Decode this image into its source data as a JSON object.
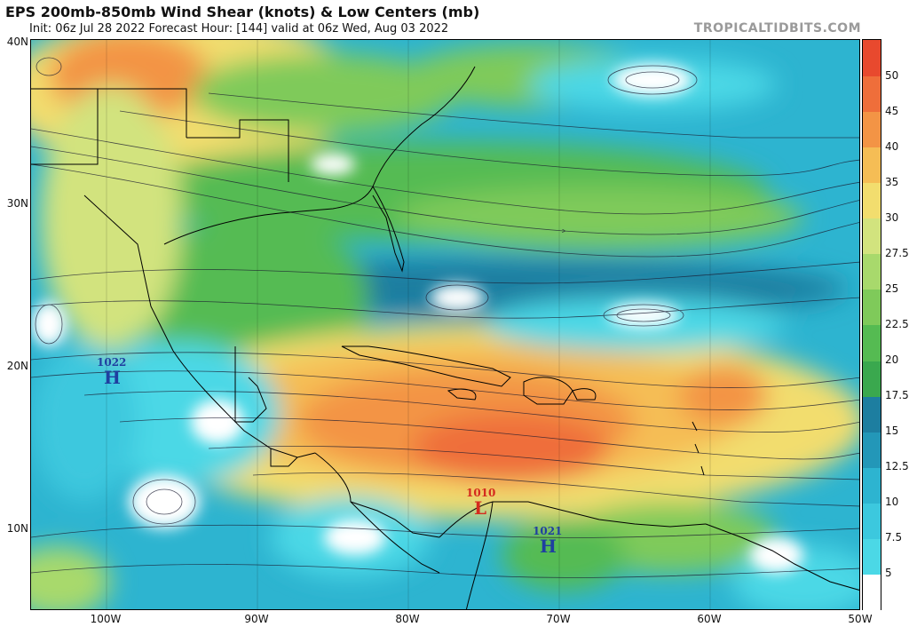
{
  "header": {
    "title": "EPS 200mb-850mb Wind Shear (knots) & Low Centers (mb)",
    "subtitle": "Init: 06z Jul 28 2022   Forecast Hour: [144]   valid at 06z Wed, Aug 03 2022",
    "brand": "TROPICALTIDBITS.COM"
  },
  "axes": {
    "lat_labels": [
      "40N",
      "30N",
      "20N",
      "10N"
    ],
    "lon_labels": [
      "100W",
      "90W",
      "80W",
      "70W",
      "60W",
      "50W"
    ]
  },
  "colorbar": {
    "labels": [
      "50",
      "45",
      "40",
      "35",
      "30",
      "27.5",
      "25",
      "22.5",
      "20",
      "17.5",
      "15",
      "12.5",
      "10",
      "7.5",
      "5"
    ],
    "colors": [
      "#ffffff",
      "#4bd8e6",
      "#3cc8de",
      "#2db4d0",
      "#2397b8",
      "#1d7ea0",
      "#3aa84e",
      "#55bb52",
      "#7fca5a",
      "#a8d96c",
      "#d2e37e",
      "#f2dd6e",
      "#f5bd55",
      "#f39445",
      "#ef6e3a",
      "#e8492e"
    ]
  },
  "pressure_centers": [
    {
      "type": "H",
      "value": "1022",
      "color": "#1f3fa0"
    },
    {
      "type": "L",
      "value": "1010",
      "color": "#d42a1e"
    },
    {
      "type": "H",
      "value": "1021",
      "color": "#1f3fa0"
    }
  ]
}
